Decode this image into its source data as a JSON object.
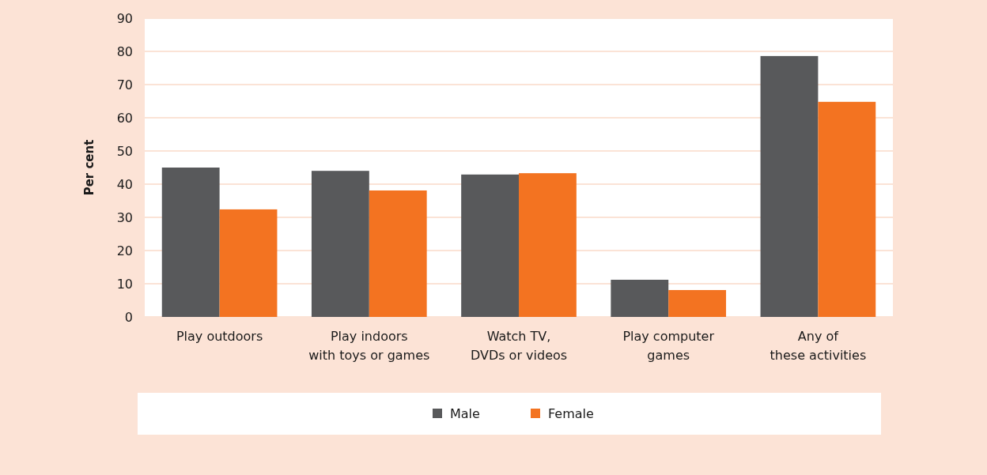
{
  "chart_data": {
    "type": "bar",
    "ylabel": "Per cent",
    "categories": [
      "Play outdoors",
      "Play indoors\nwith toys or games",
      "Watch TV,\nDVDs or videos",
      "Play computer\ngames",
      "Any of\nthese activities"
    ],
    "series": [
      {
        "name": "Male",
        "color": "#58595b",
        "values": [
          45,
          44,
          42.9,
          11.2,
          78.6
        ]
      },
      {
        "name": "Female",
        "color": "#f37321",
        "values": [
          32.4,
          38.1,
          43.3,
          8.1,
          64.8
        ]
      }
    ],
    "ylim": [
      0,
      90
    ],
    "yticks": [
      0,
      10,
      20,
      30,
      40,
      50,
      60,
      70,
      80,
      90
    ],
    "grid": "y",
    "legend": "bottom"
  }
}
